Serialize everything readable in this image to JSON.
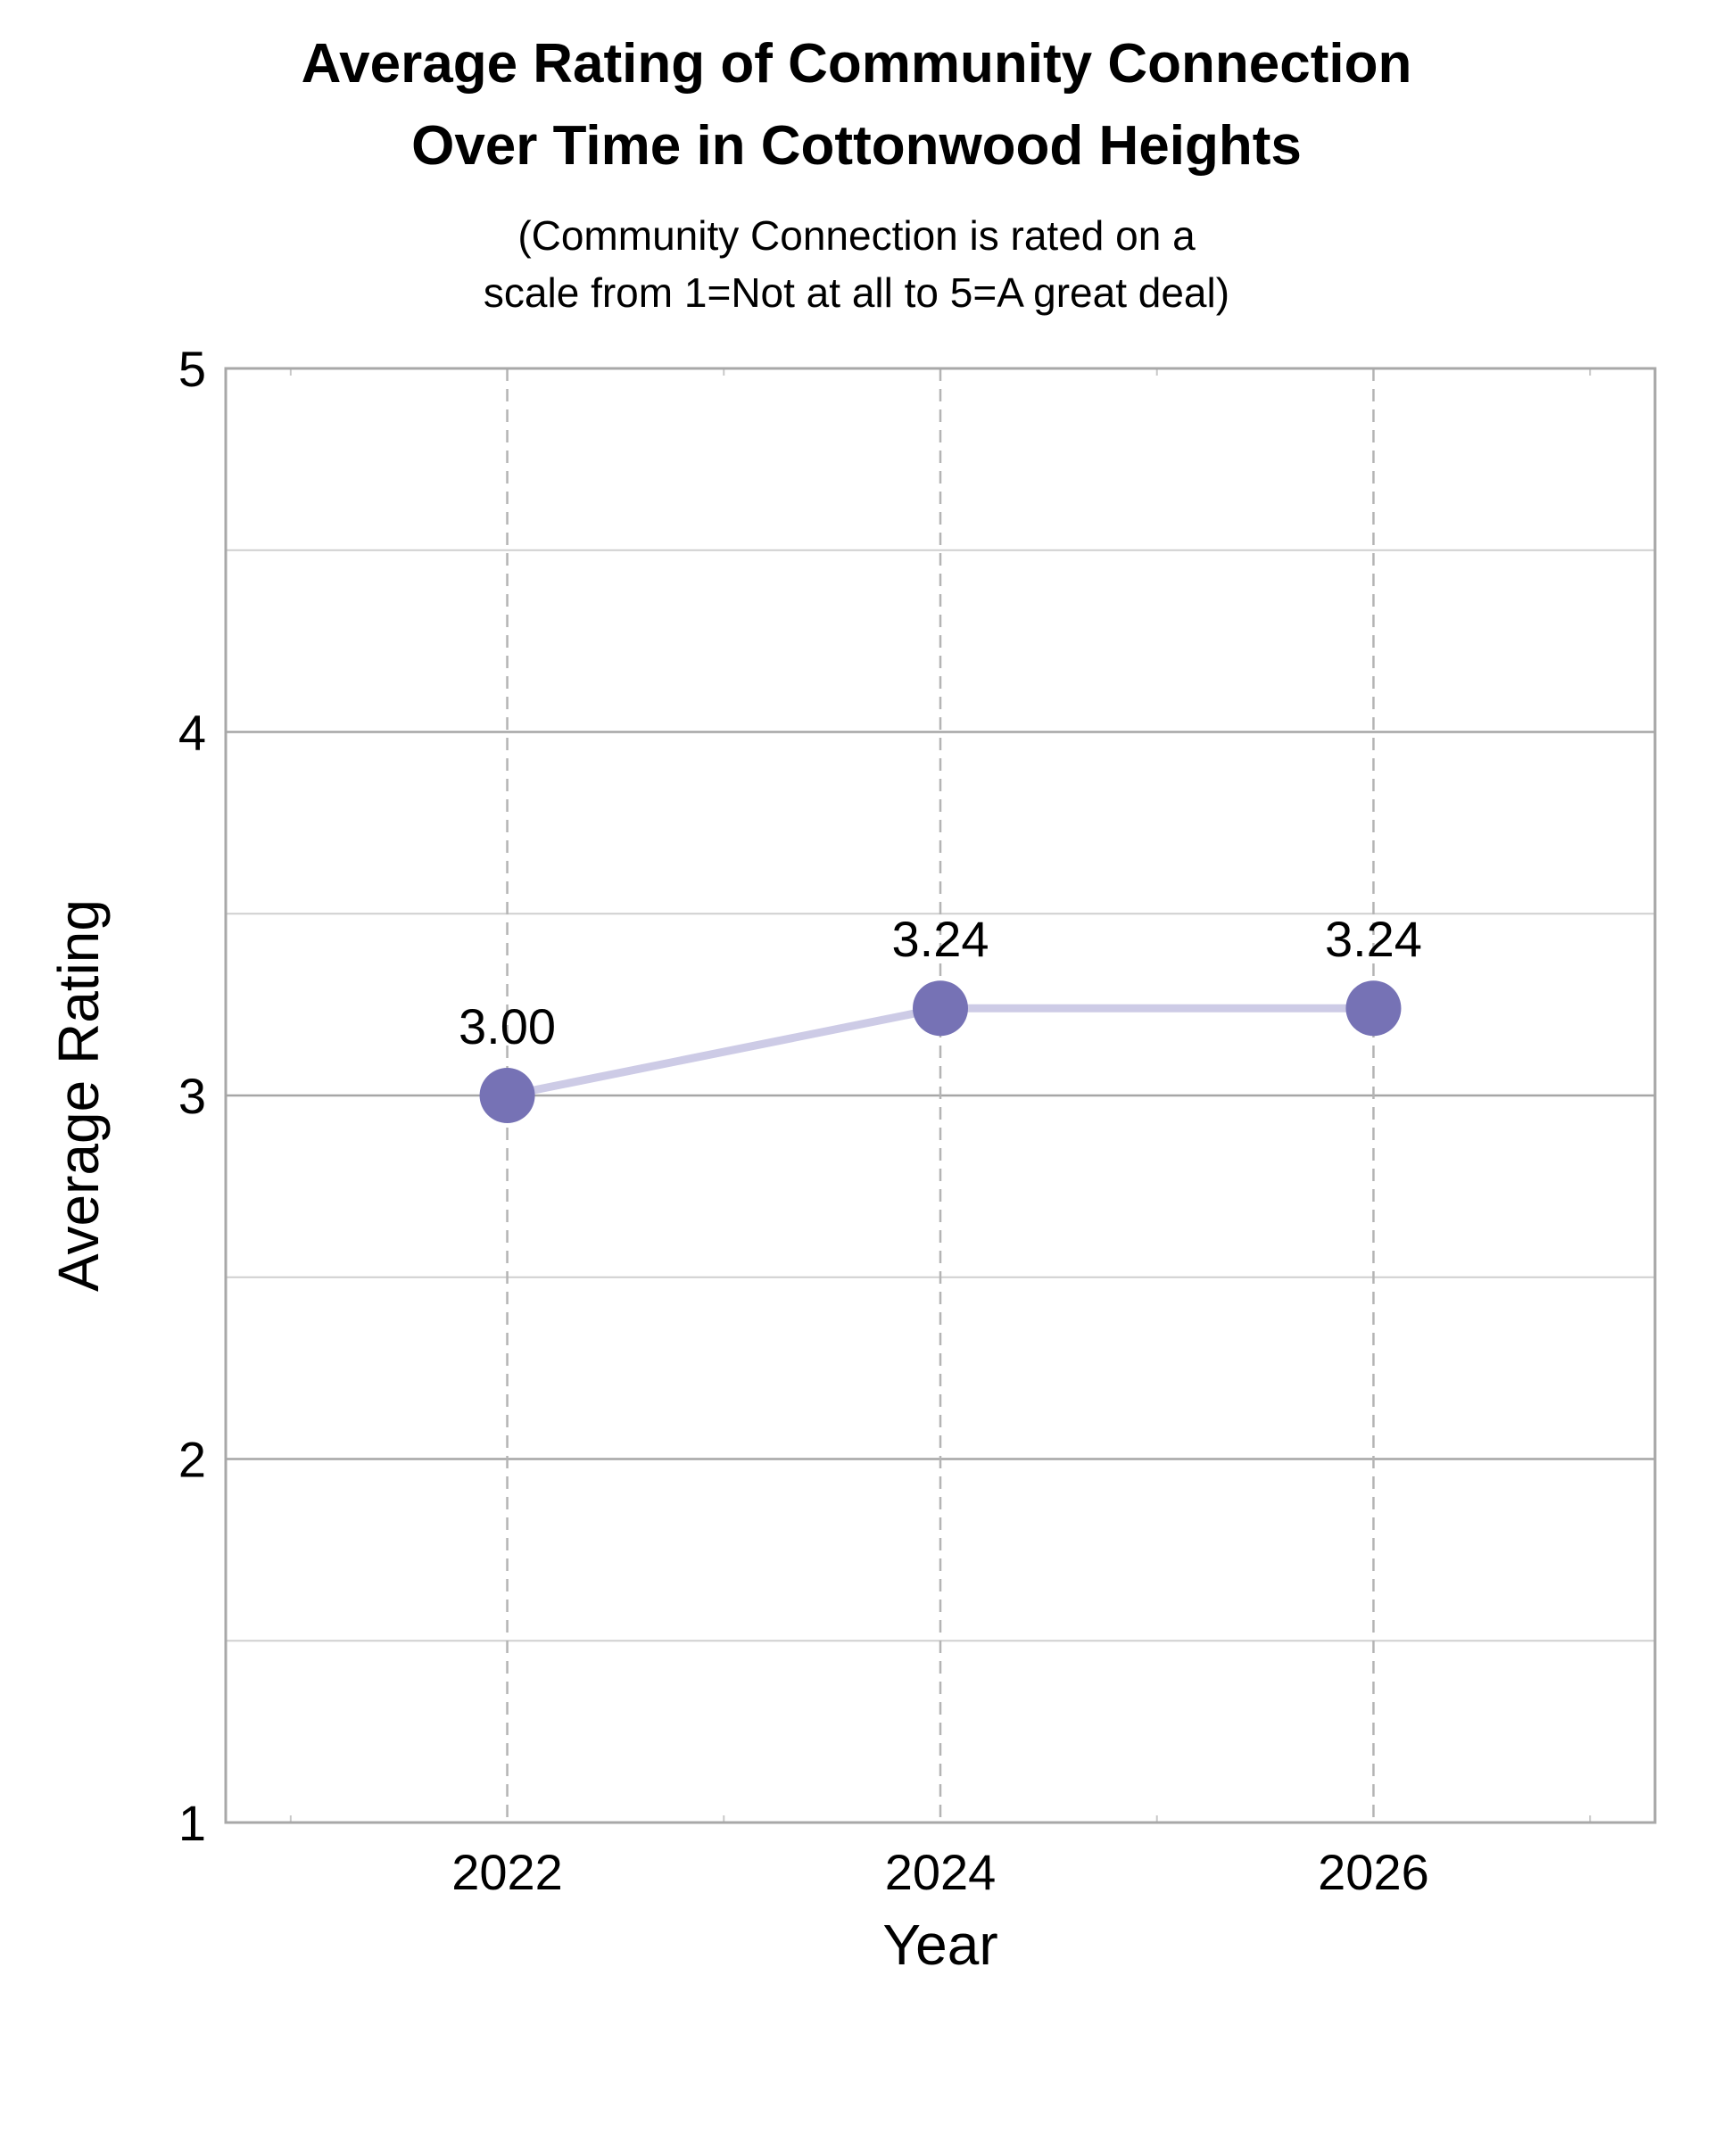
{
  "chart_data": {
    "type": "line",
    "title_lines": [
      "Average Rating of Community Connection",
      "Over Time in Cottonwood Heights"
    ],
    "subtitle_lines": [
      "(Community Connection is rated on a",
      "scale from 1=Not at all to 5=A great deal)"
    ],
    "xlabel": "Year",
    "ylabel": "Average Rating",
    "x": [
      2022,
      2024,
      2026
    ],
    "x_tick_labels": [
      "2022",
      "2024",
      "2026"
    ],
    "xlim": [
      2020.7,
      2027.3
    ],
    "y_tick_labels": [
      "1",
      "2",
      "3",
      "4",
      "5"
    ],
    "ylim": [
      1,
      5
    ],
    "series": [
      {
        "values": [
          3.0,
          3.24,
          3.24
        ],
        "labels": [
          "3.00",
          "3.24",
          "3.24"
        ]
      }
    ],
    "grid": true,
    "colors": {
      "line": "#cdcbe6",
      "marker": "#7672b5",
      "grid": "#b4b4b4",
      "frame": "#a8a8a8"
    }
  }
}
